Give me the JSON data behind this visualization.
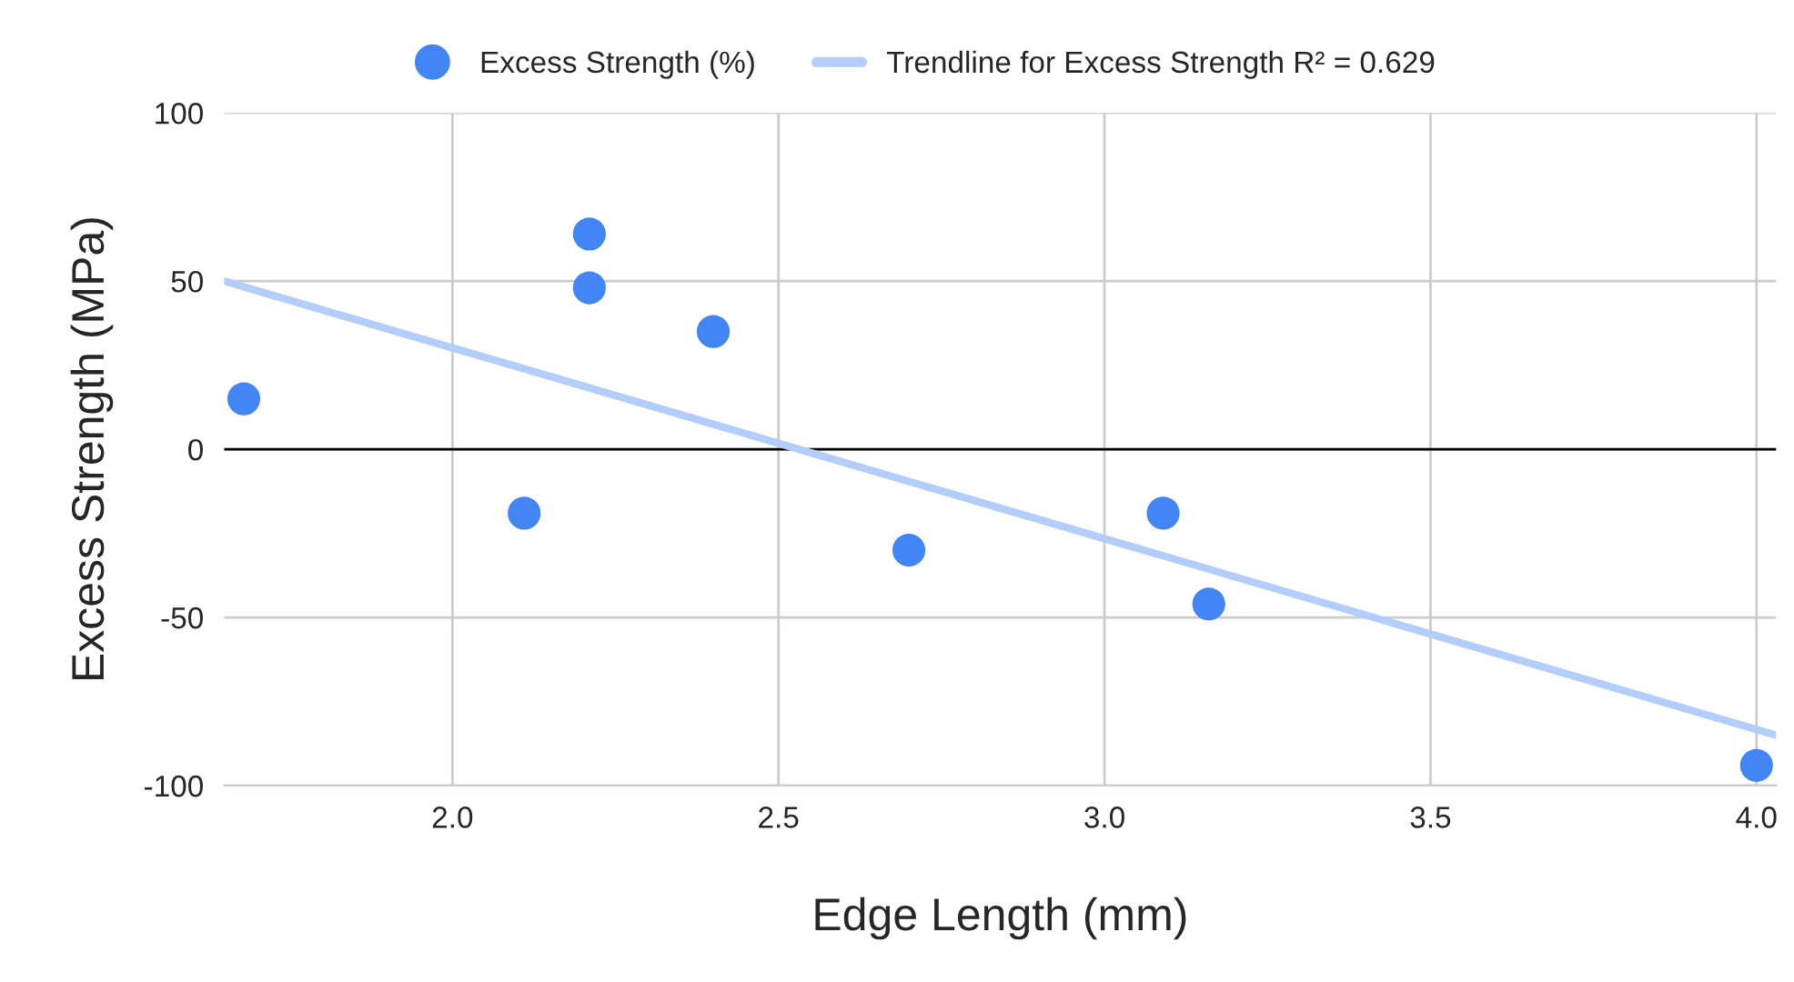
{
  "chart_data": {
    "type": "scatter",
    "xlabel": "Edge Length (mm)",
    "ylabel": "Excess Strength (MPa)",
    "xlim": [
      1.65,
      4.03
    ],
    "ylim": [
      -100,
      100
    ],
    "xticks": [
      {
        "value": 2.0,
        "label": "2.0"
      },
      {
        "value": 2.5,
        "label": "2.5"
      },
      {
        "value": 3.0,
        "label": "3.0"
      },
      {
        "value": 3.5,
        "label": "3.5"
      },
      {
        "value": 4.0,
        "label": "4.0"
      }
    ],
    "yticks": [
      -100,
      -50,
      0,
      50,
      100
    ],
    "grid": true,
    "legend": "top",
    "ref_lines": [
      {
        "axis": "y",
        "value": 0,
        "color": "#000000"
      }
    ],
    "series": [
      {
        "name": "Excess Strength (%)",
        "marker": "circle",
        "color": "#4285f4",
        "x": [
          1.68,
          2.11,
          2.21,
          2.21,
          2.4,
          2.7,
          3.09,
          3.16,
          4.0
        ],
        "values": [
          15,
          -19,
          64,
          48,
          35,
          -30,
          -19,
          -46,
          -94
        ]
      },
      {
        "name": "Trendline for Excess Strength R² = 0.629",
        "type": "line",
        "marker": "none",
        "color": "#b3cefb",
        "x": [
          1.65,
          4.03
        ],
        "values": [
          50,
          -85
        ]
      }
    ]
  }
}
